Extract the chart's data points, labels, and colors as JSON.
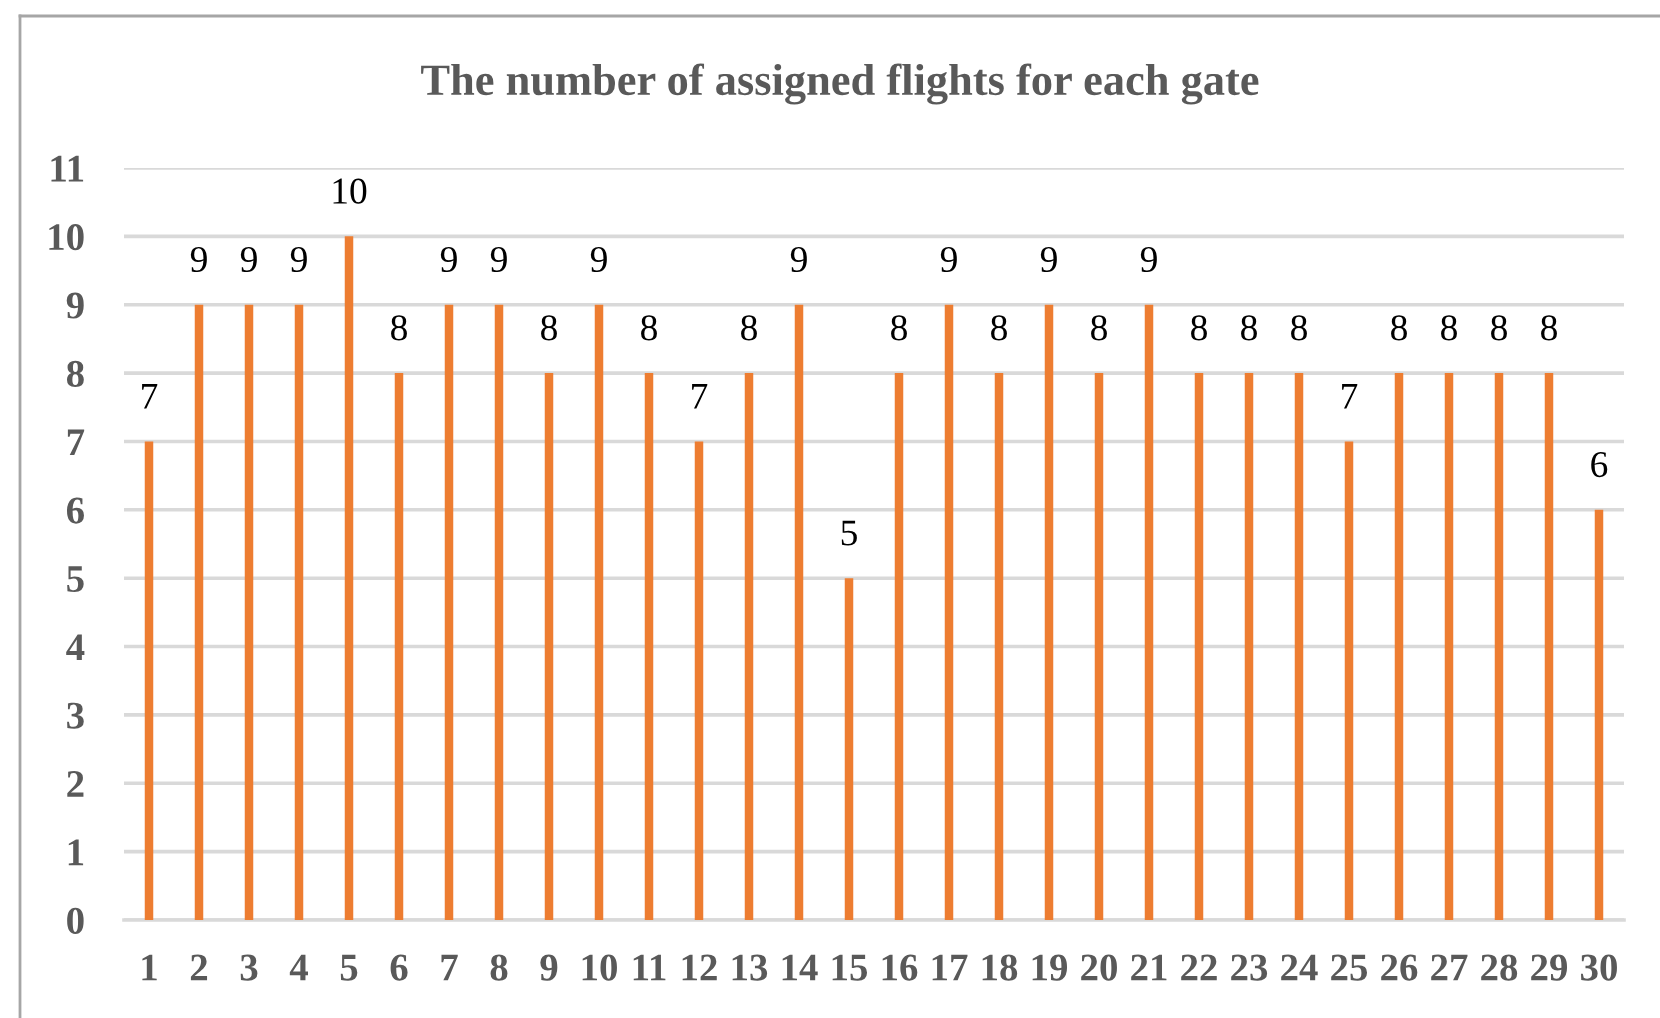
{
  "chart_data": {
    "type": "bar",
    "title": "The number of assigned flights for each gate",
    "categories": [
      "1",
      "2",
      "3",
      "4",
      "5",
      "6",
      "7",
      "8",
      "9",
      "10",
      "11",
      "12",
      "13",
      "14",
      "15",
      "16",
      "17",
      "18",
      "19",
      "20",
      "21",
      "22",
      "23",
      "24",
      "25",
      "26",
      "27",
      "28",
      "29",
      "30"
    ],
    "values": [
      7,
      9,
      9,
      9,
      10,
      8,
      9,
      9,
      8,
      9,
      8,
      7,
      8,
      9,
      5,
      8,
      9,
      8,
      9,
      8,
      9,
      8,
      8,
      8,
      7,
      8,
      8,
      8,
      8,
      6
    ],
    "color": "#ed7d31",
    "ylim": [
      0,
      11
    ],
    "yticks": [
      0,
      1,
      2,
      3,
      4,
      5,
      6,
      7,
      8,
      9,
      10,
      11
    ],
    "grid": "y",
    "data_labels": true
  }
}
